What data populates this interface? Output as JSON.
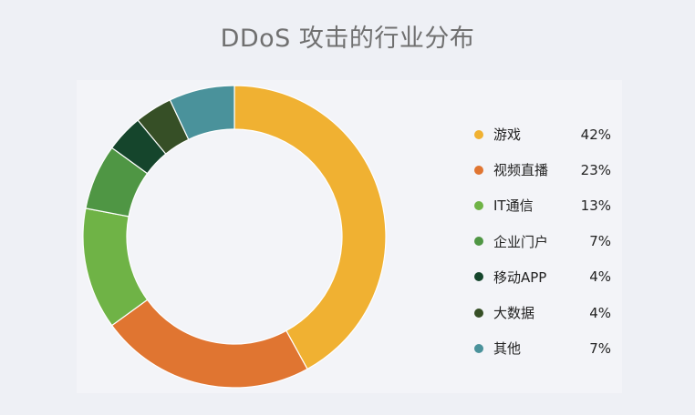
{
  "chart_data": {
    "type": "pie",
    "variant": "donut",
    "title": "DDoS 攻击的行业分布",
    "legend_position": "right",
    "categories": [
      "游戏",
      "视频直播",
      "IT通信",
      "企业门户",
      "移动APP",
      "大数据",
      "其他"
    ],
    "values": [
      42,
      23,
      13,
      7,
      4,
      4,
      7
    ],
    "value_labels": [
      "42%",
      "23%",
      "13%",
      "7%",
      "4%",
      "4%",
      "7%"
    ],
    "colors": [
      "#f0b132",
      "#e07531",
      "#6fb346",
      "#4f9644",
      "#15452c",
      "#364f26",
      "#4a929b"
    ]
  }
}
